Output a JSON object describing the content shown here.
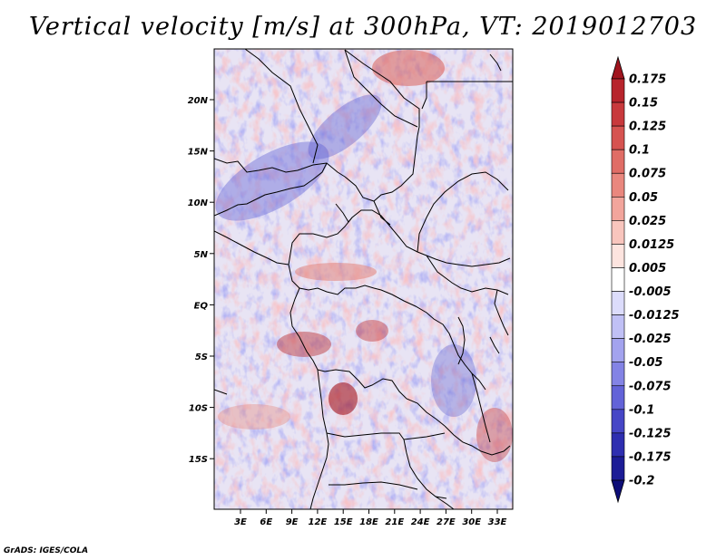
{
  "title": "Vertical velocity [m/s] at 300hPa, VT: 2019012703",
  "credit": "GrADS: IGES/COLA",
  "map": {
    "lat_labels": [
      "20N",
      "15N",
      "10N",
      "5N",
      "EQ",
      "5S",
      "10S",
      "15S"
    ],
    "lon_labels": [
      "3E",
      "6E",
      "9E",
      "12E",
      "15E",
      "18E",
      "21E",
      "24E",
      "27E",
      "30E",
      "33E"
    ],
    "lon_range": [
      0,
      35
    ],
    "lat_range": [
      -20,
      24.5
    ]
  },
  "colorbar": {
    "labels": [
      "0.175",
      "0.15",
      "0.125",
      "0.1",
      "0.075",
      "0.05",
      "0.025",
      "0.0125",
      "0.005",
      "-0.005",
      "-0.0125",
      "-0.025",
      "-0.05",
      "-0.075",
      "-0.1",
      "-0.125",
      "-0.175",
      "-0.2"
    ],
    "colors": [
      "#a0141e",
      "#b7242c",
      "#c8393c",
      "#d65350",
      "#e06d66",
      "#e9877e",
      "#f2a59c",
      "#f8c5bd",
      "#fde4df",
      "#ffffff",
      "#dcdcfb",
      "#c0c0f5",
      "#a3a3ee",
      "#8383e5",
      "#6363d8",
      "#4646c6",
      "#2e2eb0",
      "#1c1c96",
      "#0e0e78"
    ]
  }
}
